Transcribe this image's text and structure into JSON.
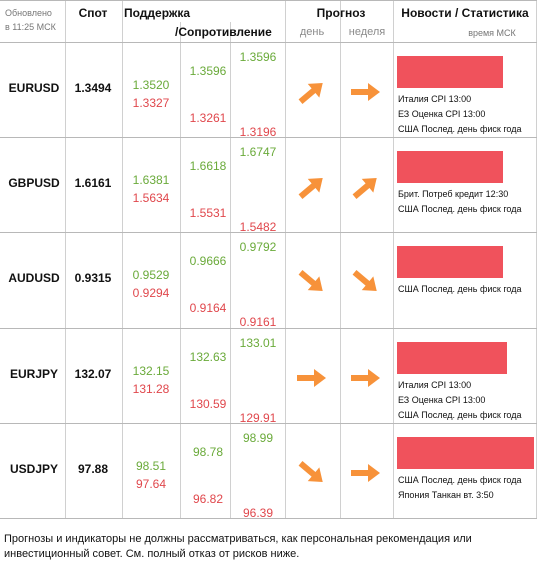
{
  "header": {
    "updated": [
      "Обновлено",
      "в 11:25 МСК"
    ],
    "spot": "Спот",
    "support": "Поддержка",
    "resistance": "/Сопротивление",
    "forecast": "Прогноз",
    "day": "день",
    "week": "неделя",
    "news": "Новости / Статистика",
    "time": "время МСК"
  },
  "rows": [
    {
      "pair": "EURUSD",
      "spot": "1.3494",
      "levels": [
        [
          "1.3520",
          "1.3327"
        ],
        [
          "1.3596",
          "1.3261"
        ],
        [
          "1.3596",
          "1.3196"
        ]
      ],
      "day": "up-right",
      "week": "right",
      "news": [
        "Италия CPI 13:00",
        "ЕЗ Оценка CPI 13:00",
        "США Послед. день фиск года"
      ]
    },
    {
      "pair": "GBPUSD",
      "spot": "1.6161",
      "levels": [
        [
          "1.6381",
          "1.5634"
        ],
        [
          "1.6618",
          "1.5531"
        ],
        [
          "1.6747",
          "1.5482"
        ]
      ],
      "day": "up-right",
      "week": "up-right",
      "news": [
        "Брит. Потреб кредит 12:30",
        "США Послед. день фиск года"
      ]
    },
    {
      "pair": "AUDUSD",
      "spot": "0.9315",
      "levels": [
        [
          "0.9529",
          "0.9294"
        ],
        [
          "0.9666",
          "0.9164"
        ],
        [
          "0.9792",
          "0.9161"
        ]
      ],
      "day": "down-right",
      "week": "down-right",
      "news": [
        "США Послед. день фиск года"
      ]
    },
    {
      "pair": "EURJPY",
      "spot": "132.07",
      "levels": [
        [
          "132.15",
          "131.28"
        ],
        [
          "132.63",
          "130.59"
        ],
        [
          "133.01",
          "129.91"
        ]
      ],
      "day": "right",
      "week": "right",
      "news": [
        "Италия CPI 13:00",
        "ЕЗ Оценка CPI 13:00",
        "США Послед. день фиск года"
      ]
    },
    {
      "pair": "USDJPY",
      "spot": "97.88",
      "levels": [
        [
          "98.51",
          "97.64"
        ],
        [
          "98.78",
          "96.82"
        ],
        [
          "98.99",
          "96.39"
        ]
      ],
      "day": "down-right",
      "week": "right",
      "news": [
        "США Послед. день фиск года",
        "Япония Танкан вт. 3:50"
      ]
    }
  ],
  "disclaimer": "Прогнозы и индикаторы не должны рассматриваться, как персональная рекомендация или инвестиционный совет. См. полный отказ от рисков ниже."
}
